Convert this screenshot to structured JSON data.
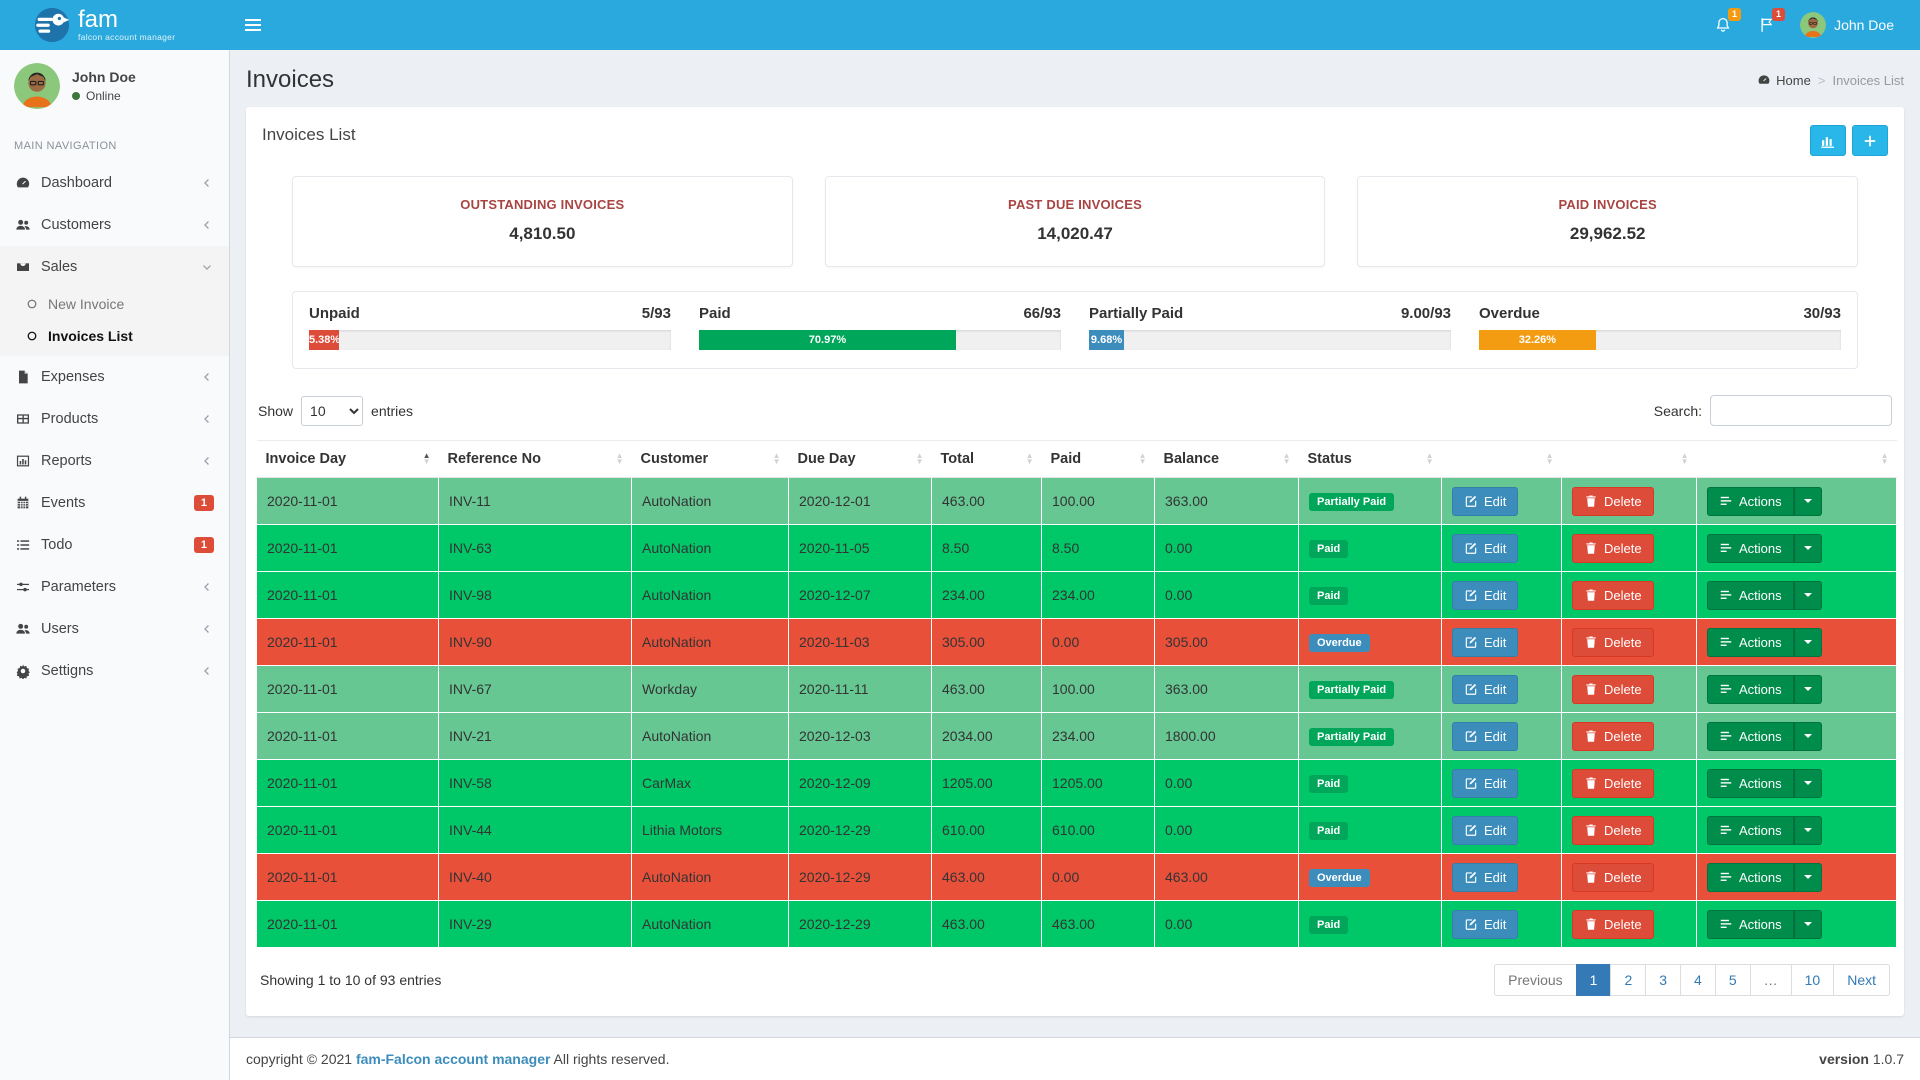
{
  "app": {
    "name": "fam",
    "tagline": "falcon account manager"
  },
  "header": {
    "user_name": "John Doe",
    "bell_badge": "1",
    "flag_badge": "1"
  },
  "sidebar": {
    "user": {
      "name": "John Doe",
      "status": "Online"
    },
    "section_label": "MAIN NAVIGATION",
    "items": [
      {
        "label": "Dashboard"
      },
      {
        "label": "Customers"
      },
      {
        "label": "Sales",
        "expanded": true,
        "children": [
          {
            "label": "New Invoice"
          },
          {
            "label": "Invoices List",
            "active": true
          }
        ]
      },
      {
        "label": "Expenses"
      },
      {
        "label": "Products"
      },
      {
        "label": "Reports"
      },
      {
        "label": "Events",
        "badge": "1"
      },
      {
        "label": "Todo",
        "badge": "1"
      },
      {
        "label": "Parameters"
      },
      {
        "label": "Users"
      },
      {
        "label": "Settigns"
      }
    ]
  },
  "page": {
    "title": "Invoices",
    "breadcrumb_home": "Home",
    "breadcrumb_current": "Invoices List",
    "panel_title": "Invoices List"
  },
  "stats": [
    {
      "label": "OUTSTANDING INVOICES",
      "value": "4,810.50"
    },
    {
      "label": "PAST DUE INVOICES",
      "value": "14,020.47"
    },
    {
      "label": "PAID INVOICES",
      "value": "29,962.52"
    }
  ],
  "progress": [
    {
      "label": "Unpaid",
      "count": "5/93",
      "pct": "5.38%",
      "pct_value": 5.38,
      "color": "#dd4b39"
    },
    {
      "label": "Paid",
      "count": "66/93",
      "pct": "70.97%",
      "pct_value": 70.97,
      "color": "#00a65a"
    },
    {
      "label": "Partially Paid",
      "count": "9.00/93",
      "pct": "9.68%",
      "pct_value": 9.68,
      "color": "#3c8dbc"
    },
    {
      "label": "Overdue",
      "count": "30/93",
      "pct": "32.26%",
      "pct_value": 32.26,
      "color": "#f39c12"
    }
  ],
  "table": {
    "show_label": "Show",
    "page_size": "10",
    "entries_label": "entries",
    "search_label": "Search:",
    "columns": [
      "Invoice Day",
      "Reference No",
      "Customer",
      "Due Day",
      "Total",
      "Paid",
      "Balance",
      "Status",
      "",
      "",
      ""
    ],
    "edit_label": "Edit",
    "delete_label": "Delete",
    "actions_label": "Actions",
    "rows": [
      {
        "invoice_day": "2020-11-01",
        "reference_no": "INV-11",
        "customer": "AutoNation",
        "due_day": "2020-12-01",
        "total": "463.00",
        "paid": "100.00",
        "balance": "363.00",
        "status": "Partially Paid",
        "row_style": "partial",
        "status_style": "green"
      },
      {
        "invoice_day": "2020-11-01",
        "reference_no": "INV-63",
        "customer": "AutoNation",
        "due_day": "2020-11-05",
        "total": "8.50",
        "paid": "8.50",
        "balance": "0.00",
        "status": "Paid",
        "row_style": "paid",
        "status_style": "green"
      },
      {
        "invoice_day": "2020-11-01",
        "reference_no": "INV-98",
        "customer": "AutoNation",
        "due_day": "2020-12-07",
        "total": "234.00",
        "paid": "234.00",
        "balance": "0.00",
        "status": "Paid",
        "row_style": "paid",
        "status_style": "green"
      },
      {
        "invoice_day": "2020-11-01",
        "reference_no": "INV-90",
        "customer": "AutoNation",
        "due_day": "2020-11-03",
        "total": "305.00",
        "paid": "0.00",
        "balance": "305.00",
        "status": "Overdue",
        "row_style": "overdue",
        "status_style": "blue"
      },
      {
        "invoice_day": "2020-11-01",
        "reference_no": "INV-67",
        "customer": "Workday",
        "due_day": "2020-11-11",
        "total": "463.00",
        "paid": "100.00",
        "balance": "363.00",
        "status": "Partially Paid",
        "row_style": "partial",
        "status_style": "green"
      },
      {
        "invoice_day": "2020-11-01",
        "reference_no": "INV-21",
        "customer": "AutoNation",
        "due_day": "2020-12-03",
        "total": "2034.00",
        "paid": "234.00",
        "balance": "1800.00",
        "status": "Partially Paid",
        "row_style": "partial",
        "status_style": "green"
      },
      {
        "invoice_day": "2020-11-01",
        "reference_no": "INV-58",
        "customer": "CarMax",
        "due_day": "2020-12-09",
        "total": "1205.00",
        "paid": "1205.00",
        "balance": "0.00",
        "status": "Paid",
        "row_style": "paid",
        "status_style": "green"
      },
      {
        "invoice_day": "2020-11-01",
        "reference_no": "INV-44",
        "customer": "Lithia Motors",
        "due_day": "2020-12-29",
        "total": "610.00",
        "paid": "610.00",
        "balance": "0.00",
        "status": "Paid",
        "row_style": "paid",
        "status_style": "green"
      },
      {
        "invoice_day": "2020-11-01",
        "reference_no": "INV-40",
        "customer": "AutoNation",
        "due_day": "2020-12-29",
        "total": "463.00",
        "paid": "0.00",
        "balance": "463.00",
        "status": "Overdue",
        "row_style": "overdue",
        "status_style": "blue"
      },
      {
        "invoice_day": "2020-11-01",
        "reference_no": "INV-29",
        "customer": "AutoNation",
        "due_day": "2020-12-29",
        "total": "463.00",
        "paid": "463.00",
        "balance": "0.00",
        "status": "Paid",
        "row_style": "paid",
        "status_style": "green"
      }
    ],
    "info": "Showing 1 to 10 of 93 entries",
    "pagination": {
      "items": [
        {
          "label": "Previous",
          "state": "disabled"
        },
        {
          "label": "1",
          "state": "active"
        },
        {
          "label": "2",
          "state": "link"
        },
        {
          "label": "3",
          "state": "link"
        },
        {
          "label": "4",
          "state": "link"
        },
        {
          "label": "5",
          "state": "link"
        },
        {
          "label": "…",
          "state": "ellipsis"
        },
        {
          "label": "10",
          "state": "link"
        },
        {
          "label": "Next",
          "state": "link"
        }
      ]
    }
  },
  "footer": {
    "left_pre": "copyright © 2021 ",
    "link": "fam-Falcon account manager",
    "left_post": " All rights reserved.",
    "version_label": "version",
    "version_value": "1.0.7"
  },
  "colors": {
    "header_blue": "#29a9dd",
    "accent_cyan": "#28b7e8",
    "danger_red": "#dd4b39",
    "success_green": "#00a65a",
    "info_blue": "#3c8dbc",
    "warning_orange": "#f39c12",
    "row_paid_green": "#00c868",
    "row_partial_green": "#66c793",
    "row_overdue_red": "#e8503a",
    "actions_green": "#008d4c"
  }
}
